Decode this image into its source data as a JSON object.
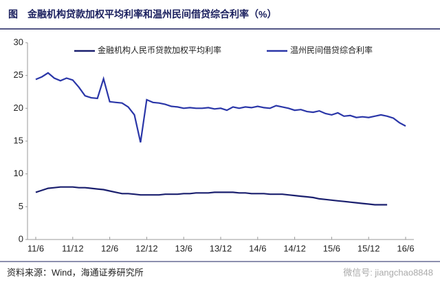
{
  "chart_data": {
    "type": "line",
    "title": "图　金融机构贷款加权平均利率和温州民间借贷综合利率（%）",
    "source": "资料来源：Wind，海通证券研究所",
    "watermark": "微信号: jiangchao8848",
    "categories": [
      "11/6",
      null,
      null,
      null,
      null,
      null,
      "11/12",
      null,
      null,
      null,
      null,
      null,
      "12/6",
      null,
      null,
      null,
      null,
      null,
      "12/12",
      null,
      null,
      null,
      null,
      null,
      "13/6",
      null,
      null,
      null,
      null,
      null,
      "13/12",
      null,
      null,
      null,
      null,
      null,
      "14/6",
      null,
      null,
      null,
      null,
      null,
      "14/12",
      null,
      null,
      null,
      null,
      null,
      "15/6",
      null,
      null,
      null,
      null,
      null,
      "15/12",
      null,
      null,
      null,
      null,
      null,
      "16/6"
    ],
    "series": [
      {
        "name": "金融机构人民币贷款加权平均利率",
        "color": "#1a1f6e",
        "values": [
          7.2,
          7.5,
          7.8,
          7.9,
          8.0,
          8.0,
          8.0,
          7.9,
          7.9,
          7.8,
          7.7,
          7.6,
          7.4,
          7.2,
          7.0,
          7.0,
          6.9,
          6.8,
          6.8,
          6.8,
          6.8,
          6.9,
          6.9,
          6.9,
          7.0,
          7.0,
          7.1,
          7.1,
          7.1,
          7.2,
          7.2,
          7.2,
          7.2,
          7.1,
          7.1,
          7.0,
          7.0,
          7.0,
          6.9,
          6.9,
          6.9,
          6.8,
          6.7,
          6.6,
          6.5,
          6.4,
          6.2,
          6.1,
          6.0,
          5.9,
          5.8,
          5.7,
          5.6,
          5.5,
          5.4,
          5.3,
          5.3,
          5.3,
          null,
          null,
          null
        ]
      },
      {
        "name": "温州民间借贷综合利率",
        "color": "#2a36a8",
        "values": [
          24.4,
          24.8,
          25.4,
          24.6,
          24.2,
          24.6,
          24.3,
          23.2,
          21.9,
          21.6,
          21.5,
          24.5,
          21.0,
          20.9,
          20.8,
          20.2,
          19.0,
          14.8,
          21.3,
          20.9,
          20.8,
          20.6,
          20.3,
          20.2,
          20.0,
          20.1,
          20.0,
          20.0,
          20.1,
          19.9,
          20.0,
          19.7,
          20.2,
          20.0,
          20.2,
          20.1,
          20.3,
          20.1,
          20.0,
          20.4,
          20.2,
          20.0,
          19.7,
          19.8,
          19.5,
          19.4,
          19.6,
          19.2,
          19.0,
          19.3,
          18.8,
          18.9,
          18.6,
          18.7,
          18.6,
          18.8,
          19.0,
          18.8,
          18.5,
          17.8,
          17.3
        ]
      }
    ],
    "ylim": [
      0,
      30
    ],
    "yticks": [
      0,
      5,
      10,
      15,
      20,
      25,
      30
    ],
    "grid": false
  }
}
